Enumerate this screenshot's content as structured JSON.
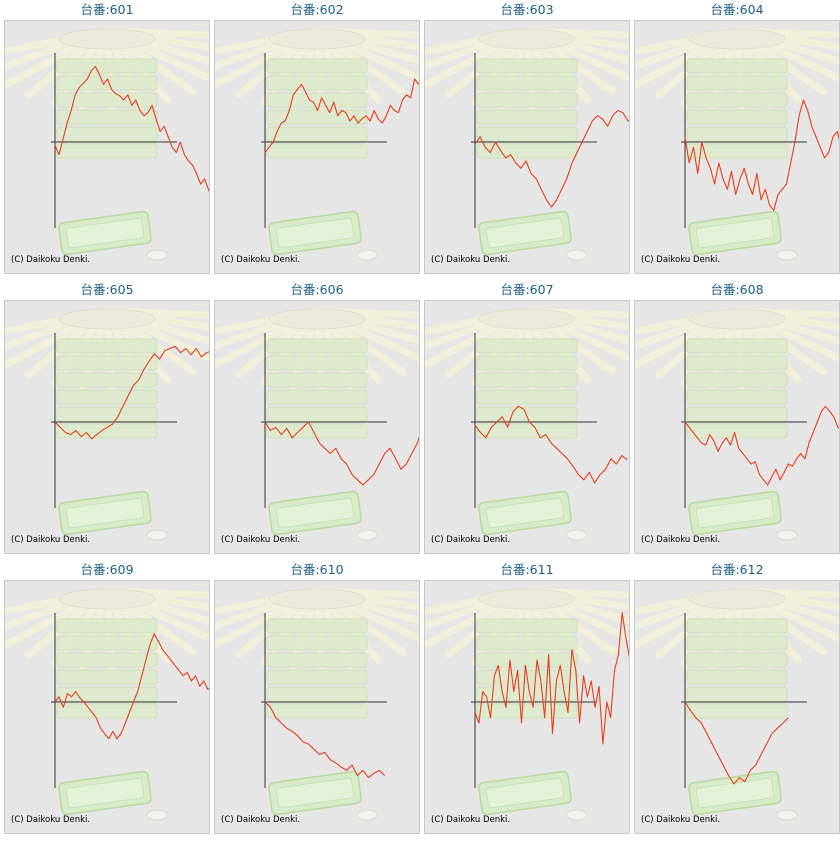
{
  "colors": {
    "line": "#e8401a",
    "axis": "#333333",
    "title": "#1a5f8a",
    "panel_bg": "#e6e6e6"
  },
  "chart_data": [
    {
      "type": "line",
      "title": "台番:601",
      "copyright": "(C) Daikoku Denki.",
      "values": [
        -3,
        -12,
        3,
        18,
        30,
        45,
        52,
        56,
        60,
        68,
        72,
        64,
        55,
        60,
        50,
        46,
        44,
        40,
        45,
        35,
        40,
        30,
        25,
        28,
        35,
        22,
        10,
        15,
        5,
        -5,
        -10,
        0,
        -12,
        -18,
        -22,
        -30,
        -40,
        -35,
        -46,
        -55,
        -48,
        -60,
        -52,
        -58,
        -50,
        -55
      ]
    },
    {
      "type": "line",
      "title": "台番:602",
      "copyright": "(C) Daikoku Denki.",
      "values": [
        -10,
        -5,
        0,
        10,
        18,
        20,
        30,
        45,
        50,
        55,
        48,
        40,
        38,
        30,
        42,
        35,
        28,
        38,
        25,
        30,
        28,
        20,
        25,
        18,
        22,
        25,
        20,
        30,
        22,
        18,
        25,
        35,
        30,
        28,
        40,
        45,
        42,
        60,
        55,
        65,
        72,
        68,
        80,
        74,
        82,
        76
      ]
    },
    {
      "type": "line",
      "title": "台番:603",
      "copyright": "(C) Daikoku Denki.",
      "values": [
        -2,
        5,
        -5,
        -10,
        0,
        -8,
        -15,
        -12,
        -20,
        -25,
        -18,
        -30,
        -35,
        -45,
        -55,
        -62,
        -55,
        -45,
        -35,
        -20,
        -10,
        0,
        10,
        20,
        25,
        22,
        15,
        25,
        30,
        28,
        20,
        25,
        32,
        38,
        40,
        32,
        28,
        35,
        25,
        30
      ]
    },
    {
      "type": "line",
      "title": "台番:604",
      "copyright": "(C) Daikoku Denki.",
      "values": [
        5,
        -20,
        -5,
        -30,
        0,
        -15,
        -25,
        -40,
        -20,
        -35,
        -45,
        -28,
        -50,
        -35,
        -25,
        -40,
        -50,
        -30,
        -55,
        -45,
        -60,
        -65,
        -50,
        -45,
        -40,
        -20,
        0,
        25,
        40,
        30,
        15,
        5,
        -5,
        -15,
        -10,
        5,
        10,
        -5,
        15,
        10,
        8,
        12,
        6,
        9
      ]
    },
    {
      "type": "line",
      "title": "台番:605",
      "copyright": "(C) Daikoku Denki.",
      "values": [
        0,
        -5,
        -10,
        -12,
        -8,
        -14,
        -10,
        -16,
        -12,
        -8,
        -5,
        -2,
        5,
        15,
        25,
        35,
        40,
        50,
        58,
        65,
        60,
        68,
        70,
        72,
        66,
        70,
        64,
        70,
        62,
        66,
        68,
        60,
        64,
        70,
        72,
        68,
        76,
        80,
        78
      ]
    },
    {
      "type": "line",
      "title": "台番:606",
      "copyright": "(C) Daikoku Denki.",
      "values": [
        0,
        -8,
        -5,
        -12,
        -6,
        -15,
        -10,
        -5,
        0,
        -10,
        -20,
        -25,
        -30,
        -25,
        -35,
        -40,
        -50,
        -55,
        -60,
        -55,
        -50,
        -40,
        -30,
        -25,
        -35,
        -45,
        -40,
        -30,
        -20,
        -5,
        5,
        15
      ]
    },
    {
      "type": "line",
      "title": "台番:607",
      "copyright": "(C) Daikoku Denki.",
      "values": [
        -3,
        -10,
        -15,
        -5,
        0,
        5,
        -5,
        10,
        15,
        12,
        0,
        -5,
        -15,
        -12,
        -20,
        -25,
        -30,
        -35,
        -42,
        -50,
        -55,
        -48,
        -58,
        -50,
        -45,
        -35,
        -40,
        -32,
        -36
      ]
    },
    {
      "type": "line",
      "title": "台番:608",
      "copyright": "(C) Daikoku Denki.",
      "values": [
        0,
        -5,
        -10,
        -15,
        -20,
        -22,
        -12,
        -18,
        -28,
        -20,
        -15,
        -22,
        -10,
        -25,
        -30,
        -35,
        -40,
        -38,
        -50,
        -55,
        -60,
        -52,
        -45,
        -55,
        -48,
        -40,
        -42,
        -35,
        -30,
        -35,
        -20,
        -10,
        0,
        10,
        15,
        10,
        5,
        -5,
        -8,
        -12,
        -5,
        -10,
        -15,
        -5,
        -8
      ]
    },
    {
      "type": "line",
      "title": "台番:609",
      "copyright": "(C) Daikoku Denki.",
      "values": [
        0,
        5,
        -5,
        8,
        5,
        10,
        4,
        0,
        -5,
        -10,
        -15,
        -25,
        -30,
        -35,
        -28,
        -35,
        -30,
        -20,
        -10,
        0,
        10,
        25,
        40,
        55,
        65,
        58,
        50,
        45,
        40,
        35,
        30,
        25,
        28,
        20,
        25,
        15,
        20,
        12,
        15,
        8,
        12,
        5,
        8,
        2,
        0
      ]
    },
    {
      "type": "line",
      "title": "台番:610",
      "copyright": "(C) Daikoku Denki.",
      "values": [
        0,
        -5,
        -15,
        -20,
        -25,
        -28,
        -32,
        -38,
        -40,
        -45,
        -50,
        -48,
        -55,
        -58,
        -62,
        -65,
        -60,
        -70,
        -65,
        -72,
        -68,
        -65,
        -70
      ]
    },
    {
      "type": "line",
      "title": "台番:611",
      "copyright": "(C) Daikoku Denki.",
      "values": [
        -10,
        -20,
        10,
        5,
        -15,
        25,
        35,
        10,
        -5,
        40,
        10,
        30,
        -20,
        35,
        10,
        -5,
        40,
        20,
        -15,
        45,
        -30,
        20,
        35,
        10,
        -10,
        50,
        30,
        -20,
        25,
        5,
        20,
        -5,
        15,
        -40,
        0,
        -15,
        30,
        45,
        85,
        60,
        40,
        0,
        10,
        -10,
        5,
        -20,
        -50,
        -30
      ]
    },
    {
      "type": "line",
      "title": "台番:612",
      "copyright": "(C) Daikoku Denki.",
      "values": [
        0,
        -8,
        -15,
        -20,
        -30,
        -40,
        -50,
        -60,
        -70,
        -78,
        -72,
        -76,
        -65,
        -60,
        -50,
        -40,
        -30,
        -25,
        -20,
        -15
      ]
    }
  ]
}
